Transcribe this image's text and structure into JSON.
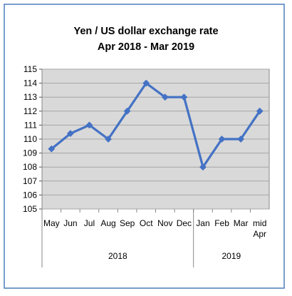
{
  "chart_data": {
    "type": "line",
    "title": "Yen / US dollar exchange rate",
    "subtitle": "Apr 2018 - Mar 2019",
    "categories": [
      [
        "May"
      ],
      [
        "Jun"
      ],
      [
        "Jul"
      ],
      [
        "Aug"
      ],
      [
        "Sep"
      ],
      [
        "Oct"
      ],
      [
        "Nov"
      ],
      [
        "Dec"
      ],
      [
        "Jan"
      ],
      [
        "Feb"
      ],
      [
        "Mar"
      ],
      [
        "mid",
        "Apr"
      ]
    ],
    "values": [
      109.3,
      110.4,
      111.0,
      110.0,
      112.0,
      114.0,
      113.0,
      113.0,
      108.0,
      110.0,
      110.0,
      112.0
    ],
    "year_groups": [
      {
        "label": "2018",
        "count": 8
      },
      {
        "label": "2019",
        "count": 4
      }
    ],
    "ylim": [
      105,
      115
    ],
    "yticks": [
      "105",
      "106",
      "107",
      "108",
      "109",
      "110",
      "111",
      "112",
      "113",
      "114",
      "115"
    ],
    "grid": true,
    "legend": "none",
    "colors": {
      "line": "#4472c4",
      "plot_background": "#d9d9d9",
      "border": "#4a7ebb",
      "grid": "#a6a6a6"
    }
  }
}
